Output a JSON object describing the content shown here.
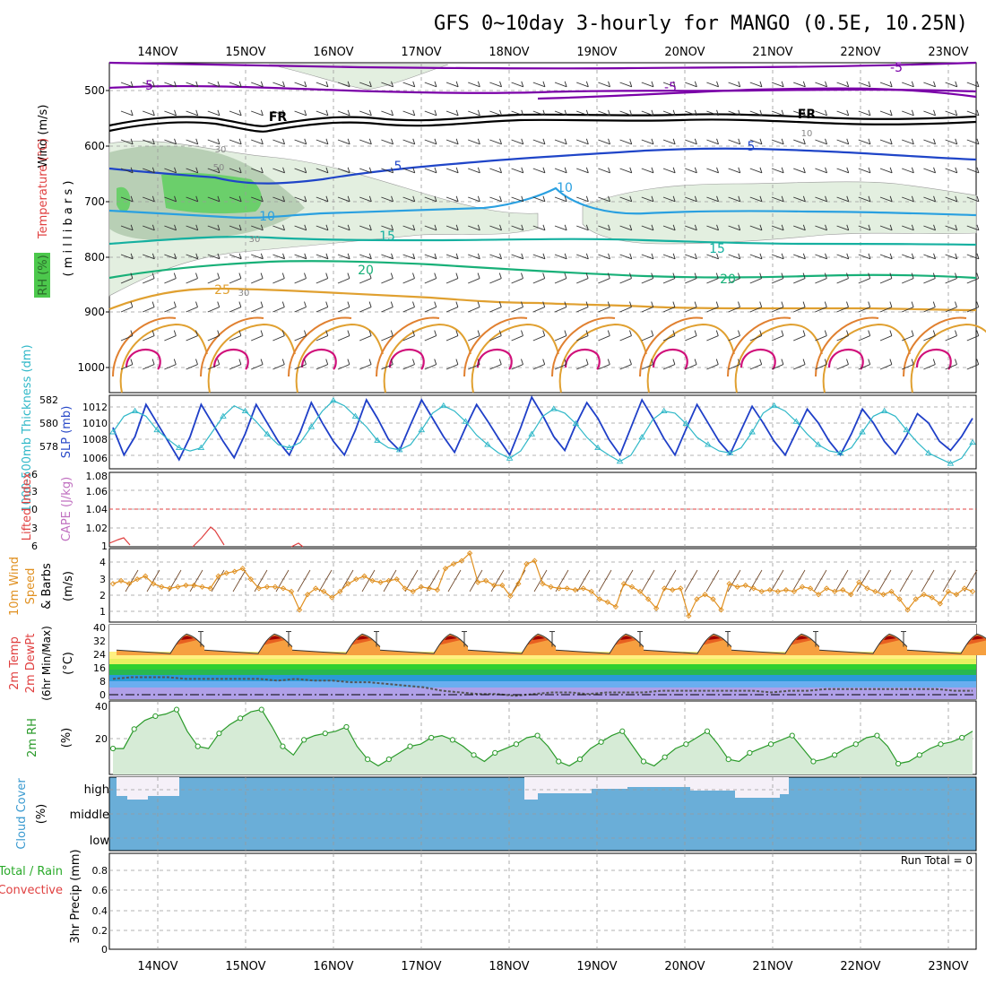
{
  "title": "GFS 0~10day 3-hourly for MANGO (0.5E, 10.25N)",
  "dates": [
    "14NOV",
    "15NOV",
    "16NOV",
    "17NOV",
    "18NOV",
    "19NOV",
    "20NOV",
    "21NOV",
    "22NOV",
    "23NOV"
  ],
  "panels": {
    "upper": {
      "ylabel_wind": "Wind (m/s)",
      "ylabel_temp": "Temperature (°C)",
      "ylabel_rh": "RH (%)",
      "ylabel_mb": "( m i l l i b a r s )",
      "pressure_ticks": [
        "500",
        "600",
        "700",
        "800",
        "900",
        "1000"
      ],
      "contour_labels": [
        "-5",
        "-5",
        "FR",
        "FR",
        "5",
        "5",
        "10",
        "10",
        "15",
        "15",
        "20",
        "20",
        "25",
        "30",
        "30",
        "50",
        "30",
        "10",
        "-5"
      ]
    },
    "thick": {
      "ylabel_thick": "1000-500mb Thickness (dm)",
      "ylabel_slp": "SLP (mb)",
      "thick_ticks": [
        "582",
        "580",
        "578"
      ],
      "slp_ticks": [
        "1012",
        "1010",
        "1008",
        "1006"
      ]
    },
    "cape": {
      "ylabel_li": "Lifted Index",
      "ylabel_cape": "CAPE (J/kg)",
      "li_ticks": [
        "-6",
        "-3",
        "0",
        "3",
        "6"
      ],
      "cape_ticks": [
        "1.08",
        "1.06",
        "1.04",
        "1.02",
        "1"
      ]
    },
    "wind10": {
      "ylabel1": "10m Wind",
      "ylabel2": "Speed",
      "ylabel3": "& Barbs",
      "ylabel_units": "(m/s)",
      "ticks": [
        "4",
        "3",
        "2",
        "1"
      ]
    },
    "temp2m": {
      "ylabel1": "2m Temp",
      "ylabel2": "2m DewPt",
      "ylabel3": "(6hr Min/Max)",
      "ylabel_units": "(°C)",
      "ticks": [
        "40",
        "32",
        "24",
        "16",
        "8",
        "0"
      ]
    },
    "rh2m": {
      "ylabel": "2m RH",
      "ylabel_units": "(%)",
      "ticks": [
        "40",
        "20"
      ]
    },
    "cloud": {
      "ylabel1": "Cloud Cover",
      "ylabel_units": "(%)",
      "levels": [
        "high",
        "middle",
        "low"
      ]
    },
    "precip": {
      "ylabel_total": "Total / Rain",
      "ylabel_conv": "Convective",
      "ylabel": "3hr Precip (mm)",
      "ticks": [
        "0.8",
        "0.6",
        "0.4",
        "0.2",
        "0"
      ],
      "run_total": "Run Total = 0"
    }
  },
  "chart_data": {
    "type": "line",
    "title": "GFS 0~10day 3-hourly for MANGO (0.5E, 10.25N)",
    "x_categories": [
      "14NOV",
      "15NOV",
      "16NOV",
      "17NOV",
      "18NOV",
      "19NOV",
      "20NOV",
      "21NOV",
      "22NOV",
      "23NOV"
    ],
    "slp_mb": [
      1009.5,
      1006.5,
      1008.5,
      1012.0,
      1010.0,
      1008.0,
      1006.0,
      1008.5,
      1012.0,
      1010.0,
      1008.0,
      1006.2,
      1008.8,
      1012.0,
      1010.0,
      1008.0,
      1006.5,
      1009.0,
      1012.2,
      1010.0,
      1008.0,
      1006.5,
      1009.2,
      1012.5,
      1010.5,
      1008.2,
      1007.0,
      1009.8,
      1012.5,
      1010.5,
      1008.5,
      1006.8,
      1009.5,
      1012.0,
      1010.2,
      1008.3,
      1006.5,
      1009.5,
      1012.8,
      1010.8,
      1008.5,
      1007.0,
      1009.8,
      1012.2,
      1010.5,
      1008.2,
      1006.5,
      1009.5,
      1012.5,
      1010.5,
      1008.3,
      1006.5,
      1009.3,
      1012.0,
      1010.0,
      1008.0,
      1006.6,
      1009.2,
      1011.8,
      1010.0,
      1008.0,
      1006.5,
      1009.0,
      1011.5,
      1010.0,
      1008.0,
      1006.5,
      1008.8,
      1011.5,
      1010.0,
      1008.0,
      1006.6,
      1008.6,
      1011.0,
      1010.0,
      1008.0,
      1007.0,
      1008.5,
      1010.5
    ],
    "thickness_dm": [
      579.0,
      580.5,
      581.0,
      580.5,
      579.2,
      578.3,
      577.5,
      577.2,
      577.5,
      579.0,
      580.5,
      581.5,
      581.0,
      580.0,
      578.8,
      577.8,
      577.5,
      578.0,
      579.5,
      581.0,
      582.0,
      581.5,
      580.5,
      579.5,
      578.2,
      577.5,
      577.3,
      577.8,
      579.2,
      580.8,
      581.5,
      581.0,
      580.0,
      578.7,
      577.8,
      577.0,
      576.5,
      577.2,
      578.8,
      580.5,
      581.2,
      580.8,
      579.8,
      578.5,
      577.5,
      576.8,
      576.2,
      576.8,
      578.5,
      580.2,
      581.0,
      580.8,
      579.8,
      578.5,
      577.8,
      577.2,
      577.0,
      577.5,
      579.0,
      580.8,
      581.5,
      581.0,
      580.0,
      578.8,
      577.8,
      577.2,
      577.0,
      577.5,
      579.0,
      580.5,
      581.0,
      580.5,
      579.2,
      578.0,
      577.0,
      576.5,
      576.0,
      576.5,
      578.0
    ],
    "wind10_ms": [
      2.5,
      2.7,
      2.5,
      2.8,
      3.0,
      2.5,
      2.3,
      2.2,
      2.3,
      2.4,
      2.4,
      2.3,
      2.2,
      3.0,
      3.2,
      3.3,
      3.5,
      2.8,
      2.2,
      2.3,
      2.3,
      2.2,
      2.0,
      0.8,
      1.8,
      2.2,
      2.0,
      1.6,
      2.0,
      2.5,
      2.8,
      3.0,
      2.7,
      2.6,
      2.7,
      2.8,
      2.2,
      2.0,
      2.3,
      2.2,
      2.1,
      3.5,
      3.8,
      4.0,
      4.5,
      2.6,
      2.7,
      2.4,
      2.4,
      1.7,
      2.5,
      3.8,
      4.0,
      2.5,
      2.3,
      2.2,
      2.2,
      2.1,
      2.2,
      2.0,
      1.5,
      1.3,
      1.0,
      2.5,
      2.3,
      2.0,
      1.5,
      0.9,
      2.2,
      2.1,
      2.2,
      0.4,
      1.5,
      1.8,
      1.5,
      0.8,
      2.5,
      2.3,
      2.4,
      2.2,
      2.0,
      2.1,
      2.0,
      2.1,
      2.0,
      2.3,
      2.2,
      1.8,
      2.2,
      2.0,
      2.1,
      1.8,
      2.6,
      2.2,
      2.0,
      1.8,
      2.0,
      1.5,
      0.8,
      1.5,
      1.8,
      1.6,
      1.2,
      2.0,
      1.8,
      2.2,
      2.0
    ],
    "temp2m_c": [
      31,
      30,
      29,
      28,
      27,
      26,
      25,
      24,
      29,
      34,
      36,
      33,
      31,
      29,
      28,
      26,
      25,
      24,
      29,
      34,
      36,
      33,
      31,
      29,
      28,
      27,
      26,
      25,
      30,
      35,
      37,
      33,
      31,
      29,
      28,
      27,
      26,
      25,
      29,
      34,
      36,
      33,
      31,
      29,
      28,
      27,
      26,
      25,
      29,
      34,
      36,
      33,
      31,
      29,
      28,
      27,
      26,
      25,
      29,
      34,
      36,
      33,
      31,
      29,
      28,
      27,
      26,
      25,
      29,
      34,
      36,
      33,
      31,
      29,
      28,
      27,
      26,
      25,
      29,
      34,
      36,
      33,
      31,
      29,
      28,
      27,
      26,
      25,
      29,
      34,
      36,
      33,
      31,
      29,
      28,
      27,
      26,
      25,
      29,
      34,
      36,
      33,
      31,
      29,
      28,
      27,
      26,
      24,
      23
    ],
    "dewpt2m_c": [
      10,
      11,
      11,
      11,
      10,
      10,
      10,
      10,
      10,
      9,
      10,
      9,
      9,
      8,
      8,
      7,
      6,
      5,
      3,
      2,
      1,
      1,
      0,
      1,
      2,
      2,
      1,
      2,
      2,
      2,
      3,
      3,
      3,
      3,
      3,
      3,
      2,
      3,
      3,
      4,
      4,
      4,
      4,
      4,
      4,
      4,
      3,
      3
    ],
    "rh2m_pct": [
      20,
      20,
      29,
      33,
      35,
      36,
      38,
      28,
      21,
      20,
      27,
      31,
      34,
      37,
      38,
      30,
      21,
      17,
      24,
      26,
      27,
      28,
      30,
      21,
      15,
      12,
      15,
      18,
      21,
      22,
      25,
      26,
      24,
      21,
      17,
      14,
      18,
      20,
      22,
      25,
      26,
      21,
      14,
      12,
      15,
      20,
      23,
      26,
      28,
      21,
      14,
      12,
      16,
      20,
      22,
      25,
      28,
      22,
      15,
      14,
      18,
      20,
      22,
      24,
      26,
      20,
      14,
      15,
      17,
      20,
      22,
      25,
      26,
      21,
      13,
      14,
      17,
      20,
      22,
      23,
      25,
      28
    ]
  }
}
